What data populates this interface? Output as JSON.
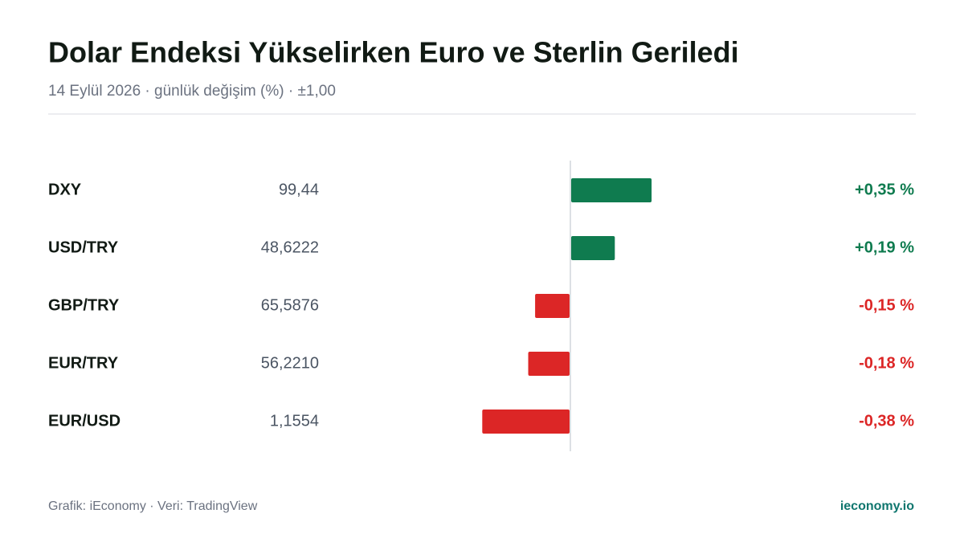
{
  "chart_data": {
    "type": "bar",
    "orientation": "horizontal",
    "title": "Dolar Endeksi Yükselirken Euro ve Sterlin Geriledi",
    "subtitle": "14 Eylül 2026 · günlük değişim (%) · ±1,00",
    "categories": [
      "DXY",
      "USD/TRY",
      "GBP/TRY",
      "EUR/TRY",
      "EUR/USD"
    ],
    "prices": [
      "99,44",
      "48,6222",
      "65,5876",
      "56,2210",
      "1,1554"
    ],
    "values": [
      0.35,
      0.19,
      -0.15,
      -0.18,
      -0.38
    ],
    "value_labels": [
      "+0,35 %",
      "+0,19 %",
      "-0,15 %",
      "-0,18 %",
      "-0,38 %"
    ],
    "xlim": [
      -1,
      1
    ],
    "positive_color": "#0f7b4f",
    "negative_color": "#dc2626"
  },
  "footer": {
    "source": "Grafik: iEconomy · Veri: TradingView",
    "brand": "ieconomy.io"
  }
}
